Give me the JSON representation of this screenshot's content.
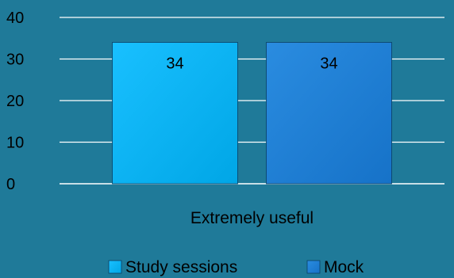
{
  "colors": {
    "background": "#1f7a99",
    "gridline": "#ffffff",
    "series_study": "#00b0f0",
    "series_mock": "#1c7fd6"
  },
  "chart_data": {
    "type": "bar",
    "categories": [
      "Extremely useful"
    ],
    "series": [
      {
        "name": "Study sessions",
        "values": [
          34
        ],
        "color": "#00b0f0"
      },
      {
        "name": "Mock",
        "values": [
          34
        ],
        "color": "#1c7fd6"
      }
    ],
    "ylim": [
      0,
      40
    ],
    "yticks": [
      0,
      10,
      20,
      30,
      40
    ],
    "grid": true,
    "data_labels": true,
    "legend_position": "bottom",
    "title": "",
    "xlabel": "",
    "ylabel": ""
  }
}
